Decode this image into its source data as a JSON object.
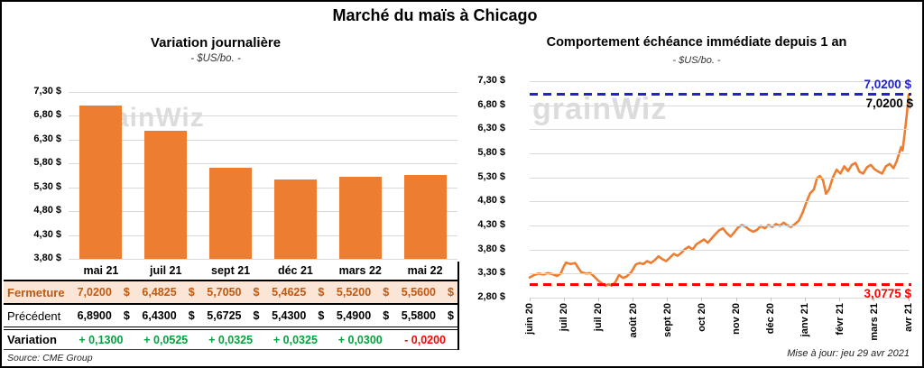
{
  "main_title": "Marché du maïs à Chicago",
  "colors": {
    "bar_orange": "#ED7D31",
    "line_orange": "#ED7D31",
    "fermeture_text": "#C05A11",
    "fermeture_bg": "#FBE5D6",
    "positive_green": "#00A33E",
    "negative_red": "#FF0000",
    "high_line_blue": "#2222CC",
    "low_line_red": "#FF0000",
    "watermark_gray": "#DCDCDC",
    "gridline_gray": "#D9D9D9"
  },
  "left_chart": {
    "title": "Variation journalière",
    "subtitle": "- $US/bo. -",
    "watermark": "grainWiz",
    "chart_data": {
      "type": "bar",
      "title": "Variation journalière",
      "ylabel": "$US/bo.",
      "categories": [
        "mai 21",
        "juil 21",
        "sept 21",
        "déc 21",
        "mars 22",
        "mai 22"
      ],
      "values": [
        7.02,
        6.4825,
        5.705,
        5.4625,
        5.52,
        5.56
      ],
      "y_ticks": [
        "7,30 $",
        "6,80 $",
        "6,30 $",
        "5,80 $",
        "5,30 $",
        "4,80 $",
        "4,30 $",
        "3,80 $"
      ],
      "ylim": [
        3.8,
        7.3
      ],
      "grid": true,
      "legend": "none"
    }
  },
  "table": {
    "header": [
      "mai 21",
      "juil 21",
      "sept 21",
      "déc 21",
      "mars 22",
      "mai 22"
    ],
    "rows": [
      {
        "label": "Fermeture",
        "style": "fermeture",
        "unit": "$",
        "values": [
          "7,0200",
          "6,4825",
          "5,7050",
          "5,4625",
          "5,5200",
          "5,5600"
        ]
      },
      {
        "label": "Précédent",
        "style": "precedent",
        "unit": "$",
        "values": [
          "6,8900",
          "6,4300",
          "5,6725",
          "5,4300",
          "5,4900",
          "5,5800"
        ]
      },
      {
        "label": "Variation",
        "style": "variation",
        "values": [
          "+ 0,1300",
          "+ 0,0525",
          "+ 0,0325",
          "+ 0,0325",
          "+ 0,0300",
          "- 0,0200"
        ]
      }
    ],
    "source": "Source: CME Group"
  },
  "right_chart": {
    "title": "Comportement échéance immédiate depuis 1 an",
    "subtitle": "- $US/bo. -",
    "watermark": "grainWiz",
    "high_label": "7,0200 $",
    "current_label": "7,0200 $",
    "low_label": "3,0775 $",
    "updated": "Mise à jour: jeu 29 avr 2021",
    "chart_data": {
      "type": "line",
      "title": "Comportement échéance immédiate depuis 1 an",
      "ylabel": "$US/bo.",
      "x_ticks": [
        "juin 20",
        "juil 20",
        "juil 20",
        "août 20",
        "sept 20",
        "oct 20",
        "nov 20",
        "déc 20",
        "janv 21",
        "févr 21",
        "mars 21",
        "avr 21"
      ],
      "y_ticks": [
        "7,30 $",
        "6,80 $",
        "6,30 $",
        "5,80 $",
        "5,30 $",
        "4,80 $",
        "4,30 $",
        "3,80 $",
        "3,30 $",
        "2,80 $"
      ],
      "ylim": [
        2.8,
        7.3
      ],
      "grid": true,
      "high_line": 7.02,
      "low_line": 3.0775,
      "last_value": 7.02,
      "points": [
        [
          0,
          3.22
        ],
        [
          1.2,
          3.27
        ],
        [
          2.4,
          3.3
        ],
        [
          3.6,
          3.28
        ],
        [
          4.8,
          3.31
        ],
        [
          6,
          3.29
        ],
        [
          7.2,
          3.25
        ],
        [
          8.2,
          3.3
        ],
        [
          9,
          3.45
        ],
        [
          9.6,
          3.53
        ],
        [
          10.8,
          3.5
        ],
        [
          12,
          3.52
        ],
        [
          12.8,
          3.42
        ],
        [
          13.6,
          3.33
        ],
        [
          14.8,
          3.3
        ],
        [
          16,
          3.31
        ],
        [
          17,
          3.24
        ],
        [
          18,
          3.16
        ],
        [
          19,
          3.1
        ],
        [
          20,
          3.05
        ],
        [
          20.8,
          3.08
        ],
        [
          21.6,
          3.05
        ],
        [
          22.6,
          3.12
        ],
        [
          23.6,
          3.27
        ],
        [
          24.6,
          3.21
        ],
        [
          25.6,
          3.24
        ],
        [
          26.8,
          3.33
        ],
        [
          28,
          3.49
        ],
        [
          29,
          3.52
        ],
        [
          30,
          3.5
        ],
        [
          31,
          3.56
        ],
        [
          32,
          3.52
        ],
        [
          33,
          3.58
        ],
        [
          34,
          3.66
        ],
        [
          35,
          3.6
        ],
        [
          36,
          3.56
        ],
        [
          37,
          3.63
        ],
        [
          38,
          3.71
        ],
        [
          39,
          3.67
        ],
        [
          40,
          3.73
        ],
        [
          41,
          3.81
        ],
        [
          42,
          3.86
        ],
        [
          43,
          3.8
        ],
        [
          44,
          3.91
        ],
        [
          45,
          3.96
        ],
        [
          46,
          4.01
        ],
        [
          47,
          3.94
        ],
        [
          48,
          4.03
        ],
        [
          49,
          4.12
        ],
        [
          50,
          4.2
        ],
        [
          51,
          4.24
        ],
        [
          52,
          4.14
        ],
        [
          53,
          4.07
        ],
        [
          54,
          4.16
        ],
        [
          55,
          4.26
        ],
        [
          56,
          4.31
        ],
        [
          57,
          4.27
        ],
        [
          58,
          4.21
        ],
        [
          59,
          4.17
        ],
        [
          60,
          4.21
        ],
        [
          61,
          4.29
        ],
        [
          62,
          4.24
        ],
        [
          63,
          4.31
        ],
        [
          64,
          4.27
        ],
        [
          65,
          4.33
        ],
        [
          66,
          4.29
        ],
        [
          67,
          4.36
        ],
        [
          68,
          4.3
        ],
        [
          69,
          4.27
        ],
        [
          70,
          4.33
        ],
        [
          71,
          4.4
        ],
        [
          72,
          4.56
        ],
        [
          73,
          4.78
        ],
        [
          74,
          4.97
        ],
        [
          75,
          5.05
        ],
        [
          75.8,
          5.28
        ],
        [
          76.6,
          5.33
        ],
        [
          77.4,
          5.24
        ],
        [
          78.2,
          4.96
        ],
        [
          79,
          5.05
        ],
        [
          80,
          5.3
        ],
        [
          81,
          5.46
        ],
        [
          82,
          5.38
        ],
        [
          83,
          5.53
        ],
        [
          84,
          5.43
        ],
        [
          85,
          5.56
        ],
        [
          86,
          5.6
        ],
        [
          87,
          5.42
        ],
        [
          88,
          5.38
        ],
        [
          89,
          5.51
        ],
        [
          90,
          5.56
        ],
        [
          91,
          5.47
        ],
        [
          92,
          5.42
        ],
        [
          93,
          5.38
        ],
        [
          94,
          5.53
        ],
        [
          95,
          5.58
        ],
        [
          96,
          5.49
        ],
        [
          96.8,
          5.63
        ],
        [
          97.5,
          5.8
        ],
        [
          98,
          5.93
        ],
        [
          98.4,
          5.86
        ],
        [
          99,
          6.25
        ],
        [
          99.5,
          6.6
        ],
        [
          100,
          7.02
        ]
      ]
    }
  }
}
